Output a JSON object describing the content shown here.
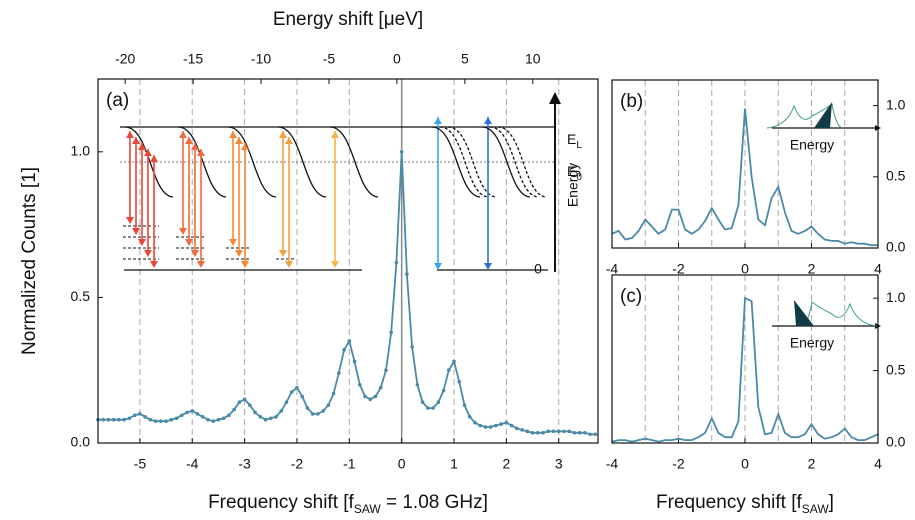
{
  "chart_data": [
    {
      "type": "line",
      "panel_label": "(a)",
      "color": "#4a8aa8",
      "markers": true,
      "top_axis_label": "Energy shift [μeV]",
      "x_label": [
        "Frequency shift [f",
        "SAW",
        " = 1.08 GHz]"
      ],
      "y_label": "Normalized Counts [1]",
      "xlim": [
        -5.8,
        3.75
      ],
      "xticks": [
        -5,
        -4,
        -3,
        -2,
        -1,
        0,
        1,
        2,
        3
      ],
      "x2lim": [
        -22,
        14.8
      ],
      "x2ticks": [
        -20,
        -15,
        -10,
        -5,
        0,
        5,
        10
      ],
      "ylim": [
        0,
        1.25
      ],
      "yticks": [
        {
          "value": 0,
          "label": "0.0"
        },
        0.5,
        {
          "value": 1,
          "label": "1.0"
        }
      ],
      "grid": true,
      "inset": {
        "E_L": [
          "E",
          "L"
        ],
        "E_0": [
          "E",
          "0"
        ],
        "axis_label": "Energy",
        "zero": "0"
      },
      "x": [
        -5.8,
        -5.7,
        -5.6,
        -5.5,
        -5.4,
        -5.3,
        -5.2,
        -5.1,
        -5.0,
        -4.9,
        -4.8,
        -4.7,
        -4.6,
        -4.5,
        -4.4,
        -4.3,
        -4.2,
        -4.1,
        -4.0,
        -3.9,
        -3.8,
        -3.7,
        -3.6,
        -3.5,
        -3.4,
        -3.3,
        -3.2,
        -3.1,
        -3.0,
        -2.9,
        -2.8,
        -2.7,
        -2.6,
        -2.5,
        -2.4,
        -2.3,
        -2.2,
        -2.1,
        -2.0,
        -1.9,
        -1.8,
        -1.7,
        -1.6,
        -1.5,
        -1.4,
        -1.3,
        -1.2,
        -1.1,
        -1.0,
        -0.9,
        -0.8,
        -0.7,
        -0.6,
        -0.5,
        -0.4,
        -0.3,
        -0.2,
        -0.1,
        0.0,
        0.1,
        0.2,
        0.3,
        0.4,
        0.5,
        0.6,
        0.7,
        0.8,
        0.9,
        1.0,
        1.1,
        1.2,
        1.3,
        1.4,
        1.5,
        1.6,
        1.7,
        1.8,
        1.9,
        2.0,
        2.1,
        2.2,
        2.3,
        2.4,
        2.5,
        2.6,
        2.7,
        2.8,
        2.9,
        3.0,
        3.1,
        3.2,
        3.3,
        3.4,
        3.5,
        3.6,
        3.7
      ],
      "values": [
        0.08,
        0.08,
        0.08,
        0.08,
        0.08,
        0.08,
        0.085,
        0.095,
        0.1,
        0.09,
        0.08,
        0.075,
        0.075,
        0.075,
        0.08,
        0.085,
        0.095,
        0.105,
        0.11,
        0.1,
        0.09,
        0.08,
        0.075,
        0.08,
        0.085,
        0.095,
        0.115,
        0.14,
        0.15,
        0.13,
        0.105,
        0.09,
        0.08,
        0.085,
        0.09,
        0.11,
        0.14,
        0.175,
        0.19,
        0.16,
        0.12,
        0.1,
        0.1,
        0.11,
        0.13,
        0.17,
        0.24,
        0.32,
        0.35,
        0.28,
        0.2,
        0.16,
        0.15,
        0.16,
        0.19,
        0.25,
        0.38,
        0.62,
        1.0,
        0.58,
        0.33,
        0.2,
        0.14,
        0.12,
        0.12,
        0.14,
        0.18,
        0.25,
        0.28,
        0.21,
        0.13,
        0.09,
        0.07,
        0.06,
        0.055,
        0.055,
        0.06,
        0.065,
        0.07,
        0.06,
        0.05,
        0.045,
        0.04,
        0.035,
        0.035,
        0.035,
        0.04,
        0.04,
        0.04,
        0.04,
        0.04,
        0.035,
        0.035,
        0.035,
        0.03,
        0.03
      ]
    },
    {
      "type": "line",
      "panel_label": "(b)",
      "color": "#4a8aa8",
      "x_label": [
        "Frequency shift [f",
        "SAW",
        "]"
      ],
      "inset": {
        "axis_label": "Energy"
      },
      "xlim": [
        -4,
        4
      ],
      "xticks": [
        -4,
        -2,
        0,
        2,
        4
      ],
      "ylim": [
        0,
        1.18
      ],
      "yticks": [
        {
          "value": 0,
          "label": "0.0"
        },
        0.5,
        {
          "value": 1,
          "label": "1.0"
        }
      ],
      "grid": true,
      "x": [
        -4.0,
        -3.8,
        -3.6,
        -3.4,
        -3.2,
        -3.0,
        -2.8,
        -2.6,
        -2.4,
        -2.2,
        -2.0,
        -1.8,
        -1.6,
        -1.4,
        -1.2,
        -1.0,
        -0.8,
        -0.6,
        -0.4,
        -0.2,
        0.0,
        0.2,
        0.4,
        0.6,
        0.8,
        1.0,
        1.2,
        1.4,
        1.6,
        1.8,
        2.0,
        2.2,
        2.4,
        2.6,
        2.8,
        3.0,
        3.2,
        3.4,
        3.6,
        3.8,
        4.0
      ],
      "values": [
        0.1,
        0.12,
        0.06,
        0.07,
        0.12,
        0.2,
        0.15,
        0.1,
        0.13,
        0.27,
        0.27,
        0.13,
        0.1,
        0.13,
        0.19,
        0.28,
        0.2,
        0.13,
        0.14,
        0.3,
        0.98,
        0.5,
        0.2,
        0.16,
        0.35,
        0.43,
        0.25,
        0.12,
        0.1,
        0.12,
        0.15,
        0.1,
        0.06,
        0.05,
        0.05,
        0.03,
        0.04,
        0.03,
        0.03,
        0.02,
        0.02
      ]
    },
    {
      "type": "line",
      "panel_label": "(c)",
      "color": "#4a8aa8",
      "inset": {
        "axis_label": "Energy"
      },
      "xlim": [
        -4,
        4
      ],
      "xticks": [
        -4,
        -2,
        0,
        2,
        4
      ],
      "ylim": [
        0,
        1.16
      ],
      "yticks": [
        {
          "value": 0,
          "label": "0.0"
        },
        0.5,
        {
          "value": 1,
          "label": "1.0"
        }
      ],
      "grid": true,
      "x": [
        -4.0,
        -3.8,
        -3.6,
        -3.4,
        -3.2,
        -3.0,
        -2.8,
        -2.6,
        -2.4,
        -2.2,
        -2.0,
        -1.8,
        -1.6,
        -1.4,
        -1.2,
        -1.0,
        -0.8,
        -0.6,
        -0.4,
        -0.2,
        0.0,
        0.2,
        0.4,
        0.6,
        0.8,
        1.0,
        1.2,
        1.4,
        1.6,
        1.8,
        2.0,
        2.2,
        2.4,
        2.6,
        2.8,
        3.0,
        3.2,
        3.4,
        3.6,
        3.8,
        4.0
      ],
      "values": [
        0.01,
        0.02,
        0.02,
        0.01,
        0.02,
        0.03,
        0.02,
        0.01,
        0.02,
        0.02,
        0.03,
        0.02,
        0.02,
        0.04,
        0.07,
        0.17,
        0.07,
        0.04,
        0.04,
        0.15,
        1.0,
        0.98,
        0.25,
        0.06,
        0.07,
        0.2,
        0.07,
        0.04,
        0.04,
        0.06,
        0.13,
        0.06,
        0.03,
        0.04,
        0.06,
        0.1,
        0.04,
        0.02,
        0.02,
        0.04,
        0.06
      ]
    }
  ]
}
